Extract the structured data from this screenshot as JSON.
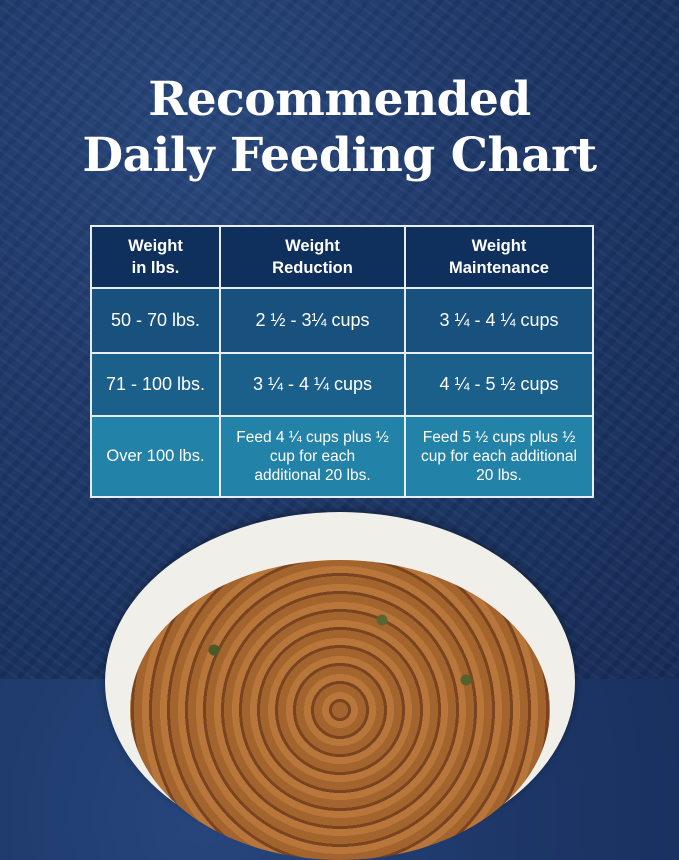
{
  "title": {
    "line1": "Recommended",
    "line2": "Daily Feeding Chart"
  },
  "table": {
    "headers": [
      {
        "line1": "Weight",
        "line2": "in lbs."
      },
      {
        "line1": "Weight",
        "line2": "Reduction"
      },
      {
        "line1": "Weight",
        "line2": "Maintenance"
      }
    ],
    "rows": [
      [
        "50 - 70 lbs.",
        "2 ½ - 3¼ cups",
        "3 ¼ - 4 ¼ cups"
      ],
      [
        "71 - 100 lbs.",
        "3 ¼ - 4 ¼ cups",
        "4 ¼ - 5 ½ cups"
      ],
      [
        "Over 100 lbs.",
        "Feed 4 ¼ cups plus ½ cup for each additional 20 lbs.",
        "Feed 5 ½ cups plus ½ cup for each additional 20 lbs."
      ]
    ]
  },
  "colors": {
    "background": "#1d3768",
    "header": "#0f2f5c",
    "row1": "#18507e",
    "row2": "#1b5f8b",
    "row3": "#2382a7"
  }
}
